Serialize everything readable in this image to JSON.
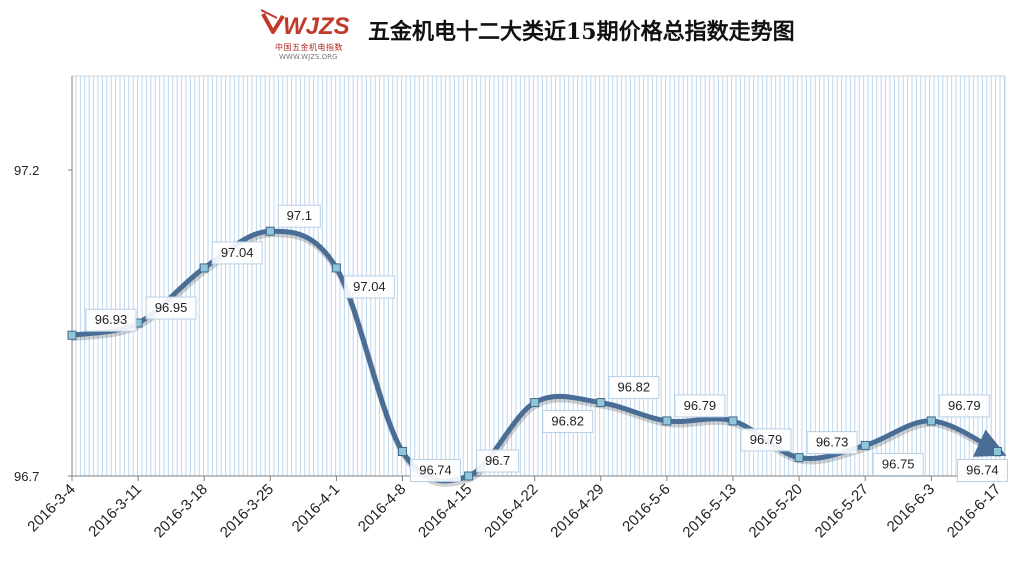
{
  "logo": {
    "wordmark": "WJZS",
    "cn": "中国五金机电指数",
    "url": "WWW.WJZS.ORG"
  },
  "chart_data": {
    "type": "line",
    "title": "五金机电十二大类近15期价格总指数走势图",
    "xlabel": "",
    "ylabel": "",
    "categories": [
      "2016-3-4",
      "2016-3-11",
      "2016-3-18",
      "2016-3-25",
      "2016-4-1",
      "2016-4-8",
      "2016-4-15",
      "2016-4-22",
      "2016-4-29",
      "2016-5-6",
      "2016-5-13",
      "2016-5-20",
      "2016-5-27",
      "2016-6-3",
      "2016-6-17"
    ],
    "values": [
      96.93,
      96.95,
      97.04,
      97.1,
      97.04,
      96.74,
      96.7,
      96.82,
      96.82,
      96.79,
      96.79,
      96.73,
      96.75,
      96.79,
      96.74
    ],
    "data_labels": [
      "96.93",
      "96.95",
      "97.04",
      "97.1",
      "97.04",
      "96.74",
      "96.7",
      "96.82",
      "96.82",
      "96.79",
      "96.79",
      "96.73",
      "96.75",
      "96.79",
      "96.74"
    ],
    "y_ticks": [
      "97.2",
      "96.7"
    ],
    "ylim": [
      96.7,
      97.35
    ],
    "smooth": true,
    "grid": "vertical",
    "legend": "none",
    "colors": {
      "line": "#4a6d96",
      "marker": "#8fc6d9",
      "grid": "#bcd6ec",
      "label_border": "#b8cfe4"
    }
  }
}
